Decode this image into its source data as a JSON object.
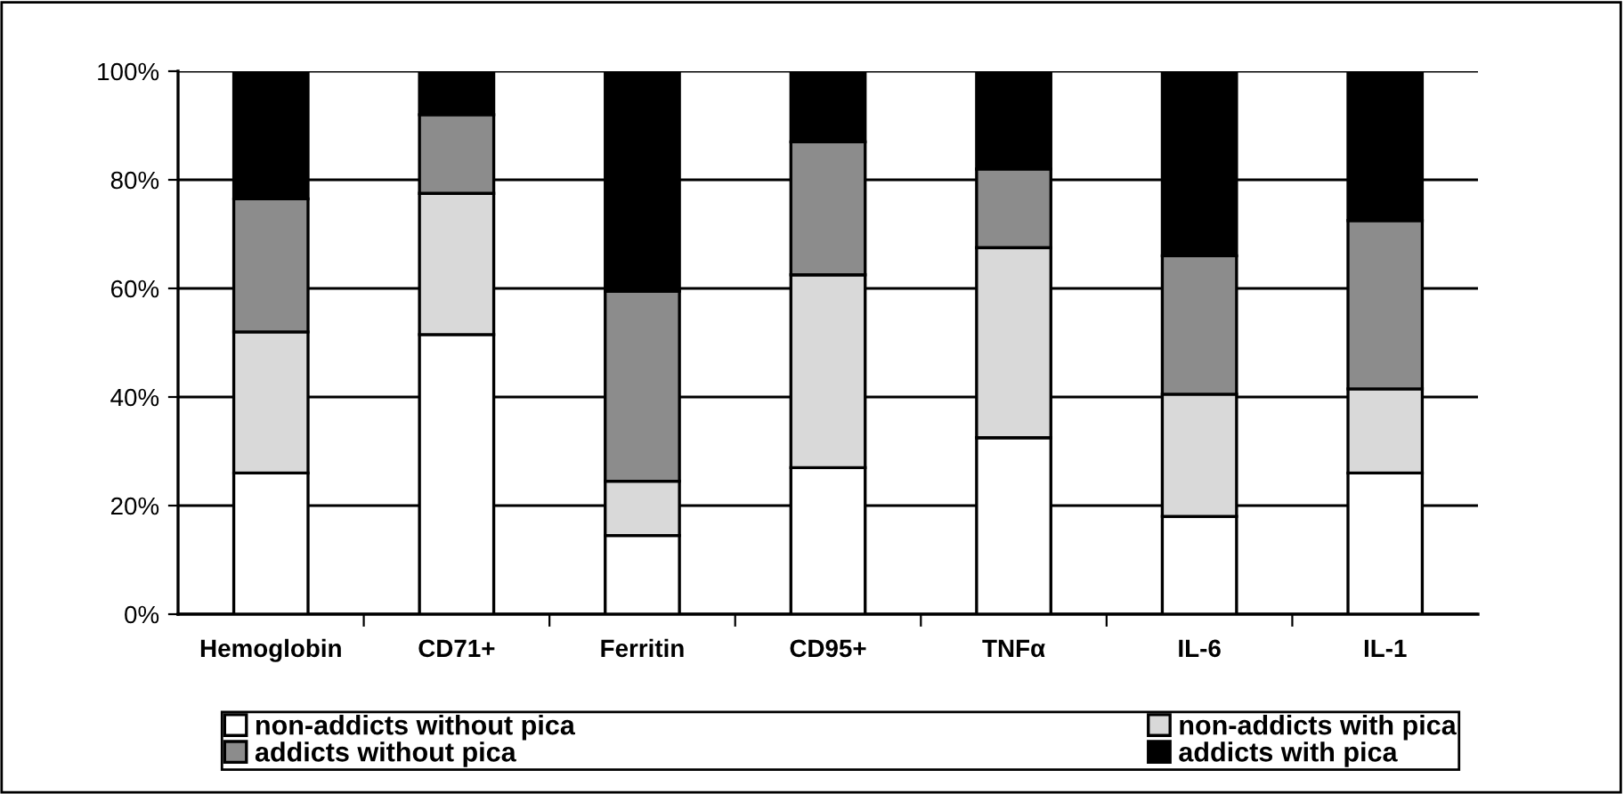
{
  "chart_data": {
    "type": "bar",
    "stacked": true,
    "categories": [
      "Hemoglobin",
      "CD71+",
      "Ferritin",
      "CD95+",
      "TNFα",
      "IL-6",
      "IL-1"
    ],
    "series": [
      {
        "name": "non-addicts without pica",
        "color": "#ffffff",
        "values": [
          26,
          51.5,
          14.5,
          27,
          32.5,
          18,
          26
        ]
      },
      {
        "name": "non-addicts with pica",
        "color": "#d9d9d9",
        "values": [
          26,
          26,
          10,
          35.5,
          35,
          22.5,
          15.5
        ]
      },
      {
        "name": "addicts without pica",
        "color": "#8c8c8c",
        "values": [
          24.5,
          14.5,
          35,
          24.5,
          14.5,
          25.5,
          31
        ]
      },
      {
        "name": "addicts with pica",
        "color": "#000000",
        "values": [
          23.5,
          8,
          40.5,
          13,
          18,
          34,
          27.5
        ]
      }
    ],
    "ylim": [
      0,
      100
    ],
    "yticks": [
      {
        "value": 0,
        "label": "0%"
      },
      {
        "value": 20,
        "label": "20%"
      },
      {
        "value": 40,
        "label": "40%"
      },
      {
        "value": 60,
        "label": "60%"
      },
      {
        "value": 80,
        "label": "80%"
      },
      {
        "value": 100,
        "label": "100%"
      }
    ],
    "grid": "y",
    "legend": "bottom"
  }
}
